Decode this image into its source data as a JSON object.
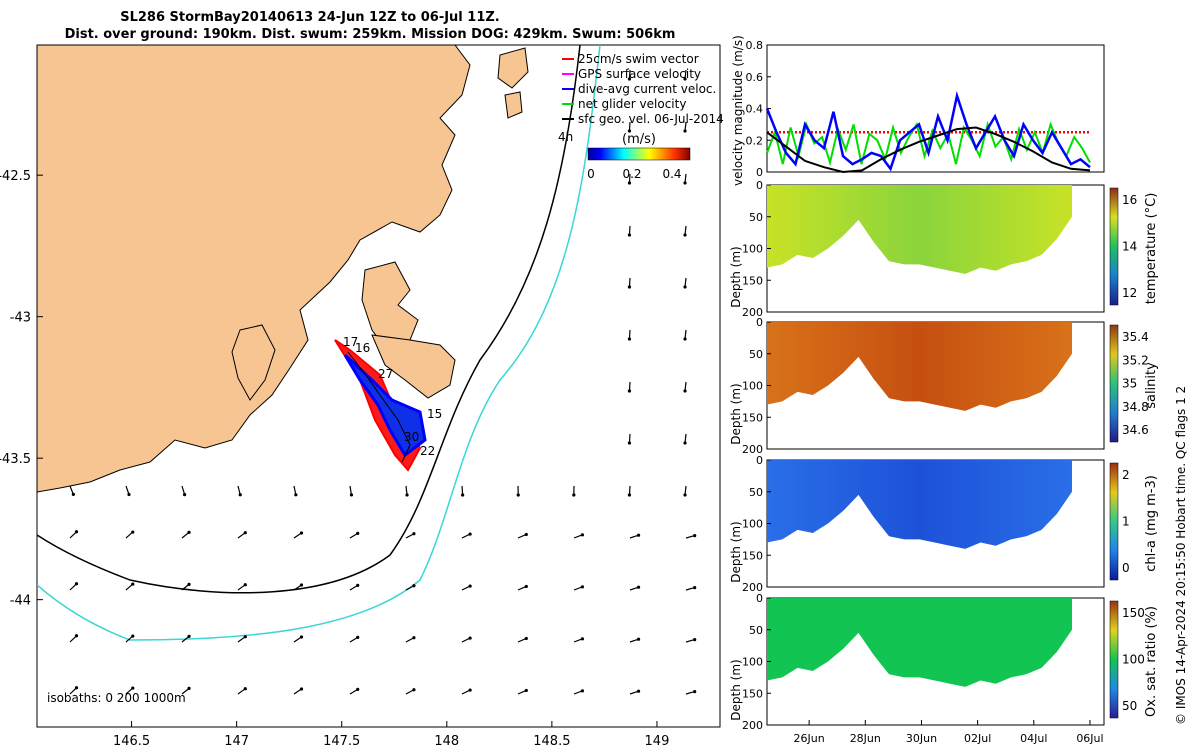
{
  "title_line1": "SL286 StormBay20140613 24-Jun 12Z to 06-Jul 11Z.",
  "title_line2": "Dist. over ground: 190km. Dist. swum: 259km. Mission DOG: 429km. Swum: 506km",
  "credit": "© IMOS 14-Apr-2024 20:15:50 Hobart time. QC flags 1  2",
  "chart_data": [
    {
      "type": "map",
      "x_ticks": [
        "146.5",
        "147",
        "147.5",
        "148",
        "148.5",
        "149"
      ],
      "y_ticks": [
        "-42.5",
        "-43",
        "-43.5",
        "-44"
      ],
      "xlim": [
        146.05,
        149.3
      ],
      "ylim": [
        -44.45,
        -42.04
      ],
      "legend": [
        {
          "label": "25cm/s swim vector",
          "color": "#ff0000"
        },
        {
          "label": "GPS surface velocity",
          "color": "#ff00ff"
        },
        {
          "label": "dive-avg current veloc.",
          "color": "#0000ff"
        },
        {
          "label": "net glider velocity",
          "color": "#00dd00"
        },
        {
          "label": "sfc geo. vel. 06-Jul-2014",
          "color": "#000000"
        }
      ],
      "colorbar_label": "(m/s)",
      "colorbar_ticks": [
        "0",
        "0.2",
        "0.4"
      ],
      "arrow_note": "4h",
      "isobaths_label": "isobaths: 0   200  1000m",
      "waypoints": [
        "17",
        "16",
        "27",
        "15",
        "30",
        "22"
      ],
      "colors": {
        "land": "#f7c592",
        "isobath_200": "#000000",
        "isobath_1000": "#3ad6d6",
        "track": "#0000ff",
        "swim": "#ff0000"
      }
    },
    {
      "type": "line",
      "ylabel": "velocity magnitude (m/s)",
      "y_ticks": [
        "0",
        "0.2",
        "0.4",
        "0.6",
        "0.8"
      ],
      "ylim": [
        0,
        0.8
      ],
      "x_ticks": [
        "26Jun",
        "28Jun",
        "30Jun",
        "02Jul",
        "04Jul",
        "06Jul"
      ],
      "x_tick_days": [
        2,
        4,
        6,
        8,
        10,
        12
      ],
      "xlim_days": [
        0.5,
        12.5
      ],
      "series": [
        {
          "name": "swim speed",
          "color": "#ff0000",
          "values": [
            0.25,
            0.25,
            0.25,
            0.25,
            0.25,
            0.25,
            0.25,
            0.25,
            0.25,
            0.25,
            0.25,
            0.25,
            0.25
          ]
        },
        {
          "name": "net glider",
          "color": "#00dd00",
          "values": [
            0.12,
            0.25,
            0.05,
            0.28,
            0.1,
            0.3,
            0.18,
            0.22,
            0.06,
            0.27,
            0.14,
            0.3,
            0.05,
            0.24,
            0.2,
            0.08,
            0.28,
            0.12,
            0.22,
            0.3,
            0.1,
            0.26,
            0.15,
            0.24,
            0.05,
            0.28,
            0.2,
            0.1,
            0.3,
            0.16,
            0.22,
            0.08,
            0.27,
            0.14,
            0.25,
            0.12,
            0.3,
            0.18,
            0.1,
            0.22,
            0.15,
            0.06
          ]
        },
        {
          "name": "dive-avg current",
          "color": "#0000ff",
          "values": [
            0.4,
            0.25,
            0.12,
            0.05,
            0.3,
            0.2,
            0.15,
            0.38,
            0.1,
            0.05,
            0.08,
            0.12,
            0.1,
            0.02,
            0.2,
            0.25,
            0.3,
            0.12,
            0.35,
            0.2,
            0.48,
            0.3,
            0.15,
            0.25,
            0.35,
            0.2,
            0.1,
            0.3,
            0.2,
            0.12,
            0.25,
            0.15,
            0.05,
            0.08,
            0.03
          ]
        },
        {
          "name": "geostrophic",
          "color": "#000000",
          "values": [
            0.25,
            0.16,
            0.07,
            0.03,
            0.0,
            0.01,
            0.08,
            0.14,
            0.19,
            0.23,
            0.27,
            0.28,
            0.24,
            0.19,
            0.13,
            0.06,
            0.02,
            0.01
          ]
        }
      ]
    },
    {
      "type": "heatmap",
      "ylabel": "Depth (m)",
      "y_ticks": [
        "0",
        "50",
        "100",
        "150",
        "200"
      ],
      "colorbar_label": "temperature (°C)",
      "colorbar_ticks": [
        "16",
        "14",
        "12"
      ],
      "bottom_depth": [
        130,
        125,
        110,
        115,
        100,
        80,
        55,
        90,
        120,
        125,
        125,
        130,
        135,
        140,
        130,
        135,
        125,
        120,
        110,
        85,
        50
      ],
      "colors": [
        "#c8e226",
        "#8ad43c"
      ]
    },
    {
      "type": "heatmap",
      "ylabel": "Depth (m)",
      "y_ticks": [
        "0",
        "50",
        "100",
        "150",
        "200"
      ],
      "colorbar_label": "salinity",
      "colorbar_ticks": [
        "35.4",
        "35.2",
        "35",
        "34.8",
        "34.6"
      ],
      "bottom_depth": [
        130,
        125,
        110,
        115,
        100,
        80,
        55,
        90,
        120,
        125,
        125,
        130,
        135,
        140,
        130,
        135,
        125,
        120,
        110,
        85,
        50
      ],
      "colors": [
        "#d8721a",
        "#c64f10"
      ]
    },
    {
      "type": "heatmap",
      "ylabel": "Depth (m)",
      "y_ticks": [
        "0",
        "50",
        "100",
        "150",
        "200"
      ],
      "colorbar_label": "chl-a (mg m-3)",
      "colorbar_ticks": [
        "2",
        "1",
        "0"
      ],
      "bottom_depth": [
        130,
        125,
        110,
        115,
        100,
        80,
        55,
        90,
        120,
        125,
        125,
        130,
        135,
        140,
        130,
        135,
        125,
        120,
        110,
        85,
        50
      ],
      "colors": [
        "#2a6ee8",
        "#1d52d8"
      ]
    },
    {
      "type": "heatmap",
      "ylabel": "Depth (m)",
      "y_ticks": [
        "0",
        "50",
        "100",
        "150",
        "200"
      ],
      "colorbar_label": "Ox. sat. ratio (%)",
      "colorbar_ticks": [
        "150",
        "100",
        "50"
      ],
      "bottom_depth": [
        130,
        125,
        110,
        115,
        100,
        80,
        55,
        90,
        120,
        125,
        125,
        130,
        135,
        140,
        130,
        135,
        125,
        120,
        110,
        85,
        50
      ],
      "colors": [
        "#12c452",
        "#12c452"
      ]
    }
  ]
}
